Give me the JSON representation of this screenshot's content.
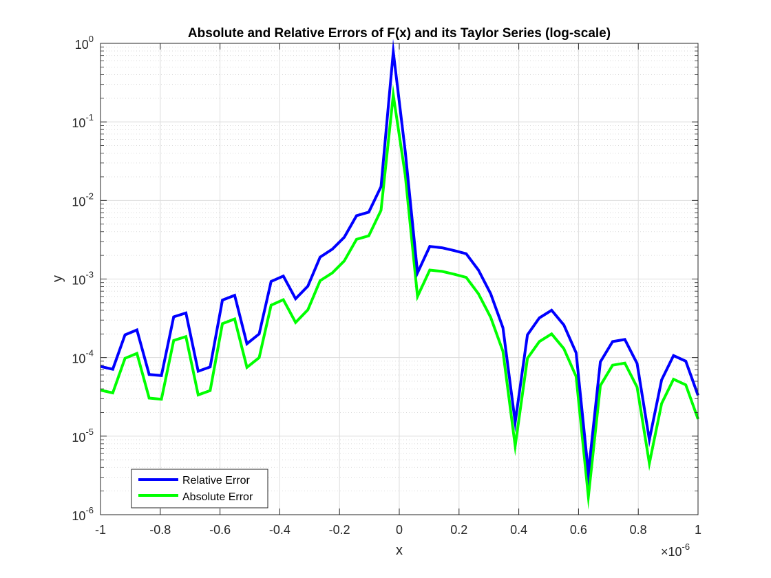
{
  "chart_data": {
    "type": "line",
    "title": "Absolute and Relative Errors of F(x) and its Taylor Series (log-scale)",
    "xlabel": "x",
    "ylabel": "y",
    "x_exponent_label": "×10",
    "x_exponent_power": "-6",
    "xlim": [
      -1e-06,
      1e-06
    ],
    "ylim": [
      1e-06,
      1
    ],
    "yscale": "log",
    "grid": true,
    "minor_grid": true,
    "legend_location": "bottom-left",
    "x_tick_labels": [
      "-1",
      "-0.8",
      "-0.6",
      "-0.4",
      "-0.2",
      "0",
      "0.2",
      "0.4",
      "0.6",
      "0.8",
      "1"
    ],
    "y_tick_labels": [
      {
        "base": "10",
        "exp": "0"
      },
      {
        "base": "10",
        "exp": "-1"
      },
      {
        "base": "10",
        "exp": "-2"
      },
      {
        "base": "10",
        "exp": "-3"
      },
      {
        "base": "10",
        "exp": "-4"
      },
      {
        "base": "10",
        "exp": "-5"
      },
      {
        "base": "10",
        "exp": "-6"
      }
    ],
    "x": [
      -1e-06,
      -9.59e-07,
      -9.18e-07,
      -8.78e-07,
      -8.37e-07,
      -7.96e-07,
      -7.55e-07,
      -7.14e-07,
      -6.73e-07,
      -6.33e-07,
      -5.92e-07,
      -5.51e-07,
      -5.1e-07,
      -4.69e-07,
      -4.29e-07,
      -3.88e-07,
      -3.47e-07,
      -3.06e-07,
      -2.65e-07,
      -2.24e-07,
      -1.84e-07,
      -1.43e-07,
      -1.02e-07,
      -6.1e-08,
      -2e-08,
      2e-08,
      6.1e-08,
      1.02e-07,
      1.43e-07,
      1.84e-07,
      2.24e-07,
      2.65e-07,
      3.06e-07,
      3.47e-07,
      3.88e-07,
      4.29e-07,
      4.69e-07,
      5.1e-07,
      5.51e-07,
      5.92e-07,
      6.33e-07,
      6.73e-07,
      7.14e-07,
      7.55e-07,
      7.96e-07,
      8.37e-07,
      8.78e-07,
      9.18e-07,
      9.59e-07,
      1e-06
    ],
    "series": [
      {
        "name": "Relative Error",
        "color": "#0000ff",
        "values": [
          7.7e-05,
          7.1e-05,
          0.000195,
          0.000225,
          6.1e-05,
          5.9e-05,
          0.00033,
          0.00037,
          6.7e-05,
          7.6e-05,
          0.00054,
          0.00062,
          0.00015,
          0.0002,
          0.00093,
          0.00109,
          0.00056,
          0.00081,
          0.0019,
          0.0024,
          0.0034,
          0.0064,
          0.0071,
          0.015,
          0.78,
          0.042,
          0.0012,
          0.0026,
          0.0025,
          0.0023,
          0.0021,
          0.0013,
          0.00065,
          0.00024,
          1.5e-05,
          0.000195,
          0.00032,
          0.0004,
          0.00026,
          0.000115,
          3.4e-06,
          8.8e-05,
          0.00016,
          0.00017,
          8.4e-05,
          9e-06,
          5.2e-05,
          0.000106,
          9e-05,
          3.3e-05
        ]
      },
      {
        "name": "Absolute Error",
        "color": "#00ff00",
        "values": [
          3.85e-05,
          3.55e-05,
          9.8e-05,
          0.000113,
          3.05e-05,
          2.95e-05,
          0.000165,
          0.000185,
          3.35e-05,
          3.8e-05,
          0.00027,
          0.00031,
          7.5e-05,
          0.0001,
          0.000465,
          0.000545,
          0.00028,
          0.000405,
          0.00095,
          0.0012,
          0.0017,
          0.0032,
          0.00355,
          0.0075,
          0.22,
          0.021,
          0.0006,
          0.0013,
          0.00125,
          0.00115,
          0.00105,
          0.00065,
          0.000325,
          0.00012,
          7.5e-06,
          9.8e-05,
          0.00016,
          0.0002,
          0.00013,
          5.75e-05,
          1.7e-06,
          4.4e-05,
          8e-05,
          8.5e-05,
          4.2e-05,
          4.5e-06,
          2.6e-05,
          5.3e-05,
          4.5e-05,
          1.65e-05
        ]
      }
    ]
  }
}
